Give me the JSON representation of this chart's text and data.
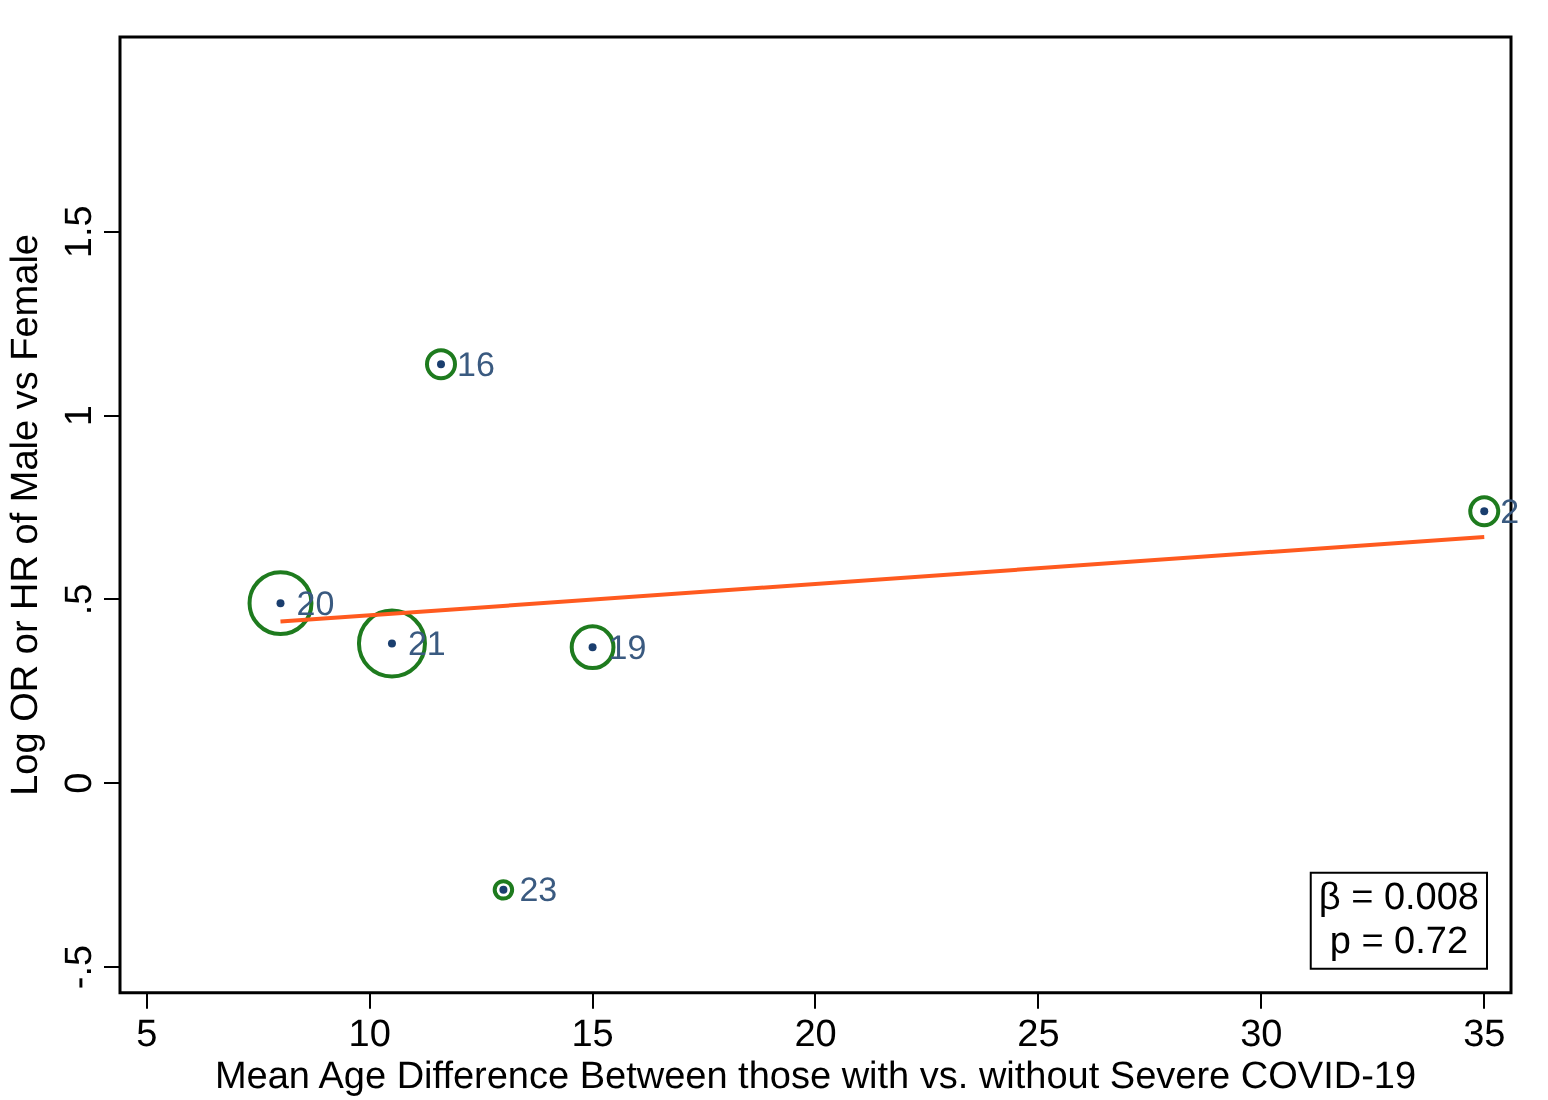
{
  "chart_data": {
    "type": "bubble",
    "xlabel": "Mean Age Difference Between those with vs. without Severe COVID-19",
    "ylabel": "Log OR or HR of Male vs Female",
    "series": [
      {
        "color": "#1e7b1e",
        "x": [
          11.6,
          35,
          8.0,
          10.5,
          15.0,
          13.0
        ],
        "values": [
          1.14,
          0.74,
          0.49,
          0.38,
          0.37,
          -0.29
        ],
        "sizes": [
          0.18,
          0.18,
          0.88,
          1,
          0.4,
          0.07
        ]
      },
      {
        "type": "scatter",
        "color": "#1a3e6e",
        "x": [
          11.6,
          35,
          8.0,
          10.5,
          15.0,
          13.0
        ],
        "values": [
          1.14,
          0.74,
          0.49,
          0.38,
          0.37,
          -0.29
        ]
      },
      {
        "type": "line",
        "color": "#ff5a1f",
        "x": [
          8,
          35
        ],
        "values": [
          0.44,
          0.67
        ]
      }
    ],
    "annotations": [
      {
        "text": "16",
        "x": 11.6,
        "y": 1.14
      },
      {
        "text": "2",
        "x": 35,
        "y": 0.74
      },
      {
        "text": "20",
        "x": 8.0,
        "y": 0.49
      },
      {
        "text": "21",
        "x": 10.5,
        "y": 0.38
      },
      {
        "text": "19",
        "x": 15.0,
        "y": 0.37
      },
      {
        "text": "23",
        "x": 13.0,
        "y": -0.29
      },
      "β = 0.008\np = 0.72"
    ],
    "xlim": [
      4.4,
      35.6
    ],
    "ylim": [
      -0.57,
      2.03
    ],
    "xticks": [
      5,
      10,
      15,
      20,
      25,
      30,
      35
    ],
    "yticks": [
      {
        "value": -0.5,
        "label": "-.5"
      },
      0,
      {
        "value": 0.5,
        "label": ".5"
      },
      1,
      1.5
    ],
    "grid": false,
    "legend": false
  }
}
